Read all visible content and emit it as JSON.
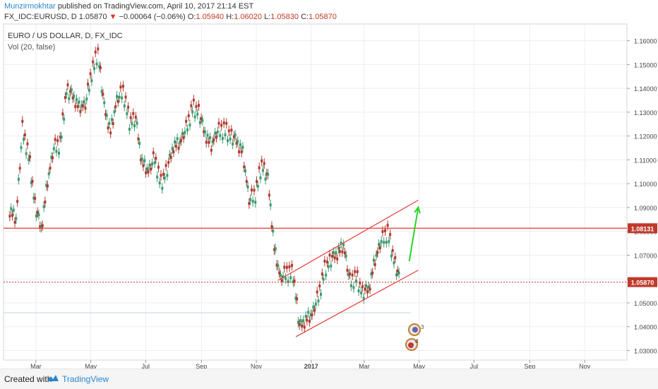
{
  "header": {
    "author": "Munzirmokhtar",
    "published": "published on TradingView.com, April 10, 2017 21:14 EST",
    "symbol": "FX_IDC:EURUSD, D",
    "last": "1.05870",
    "change": "−0.00064 (−0.06%)",
    "o_label": "O:",
    "o": "1.05940",
    "h_label": "H:",
    "h": "1.06020",
    "l_label": "L:",
    "l": "1.05830",
    "c_label": "C:",
    "c": "1.05870"
  },
  "legend": {
    "title": "EURO / US DOLLAR, D, FX_IDC",
    "indicator": "Vol (20, false)"
  },
  "footer": {
    "created": "Created with",
    "brand": "TradingView"
  },
  "events": {
    "badge1": "3",
    "badge2": "4"
  },
  "colors": {
    "up": "#3d9970",
    "down": "#b03a2e",
    "trend": "#e53935",
    "arrow": "#27d427",
    "level": "#e53935",
    "price_tag": "#c0392b",
    "lower_line": "#b9d4e6"
  },
  "chart_data": {
    "type": "candlestick",
    "title": "EURO / US DOLLAR, D, FX_IDC",
    "x_ticks": [
      "Mar",
      "May",
      "Jul",
      "Sep",
      "Nov",
      "2017",
      "Mar",
      "May",
      "Jul",
      "Sep",
      "Nov"
    ],
    "y_ticks": [
      "1.16000",
      "1.15000",
      "1.14000",
      "1.13000",
      "1.12000",
      "1.11000",
      "1.10000",
      "1.09000",
      "1.08000",
      "1.07000",
      "1.06000",
      "1.05000",
      "1.04000",
      "1.03000"
    ],
    "ylim": [
      1.026,
      1.167
    ],
    "grid": true,
    "price_levels": [
      {
        "value": 1.08131,
        "label": "1.08131",
        "style": "solid"
      },
      {
        "value": 1.0587,
        "label": "1.05870",
        "style": "dotted"
      }
    ],
    "channel": {
      "upper": [
        [
          "2016-11-25",
          1.0594
        ],
        [
          "2017-04-30",
          1.0931
        ]
      ],
      "lower": [
        [
          "2016-12-15",
          1.0358
        ],
        [
          "2017-04-30",
          1.0637
        ]
      ]
    },
    "arrow": {
      "from": [
        "2017-04-20",
        1.0675
      ],
      "to": [
        "2017-04-30",
        1.0901
      ]
    },
    "closes": [
      [
        "2016-02-01",
        1.089
      ],
      [
        "2016-02-08",
        1.085
      ],
      [
        "2016-02-15",
        1.123
      ],
      [
        "2016-02-22",
        1.112
      ],
      [
        "2016-02-29",
        1.091
      ],
      [
        "2016-03-07",
        1.081
      ],
      [
        "2016-03-14",
        1.101
      ],
      [
        "2016-03-21",
        1.115
      ],
      [
        "2016-03-28",
        1.117
      ],
      [
        "2016-04-04",
        1.139
      ],
      [
        "2016-04-11",
        1.137
      ],
      [
        "2016-04-18",
        1.132
      ],
      [
        "2016-04-25",
        1.133
      ],
      [
        "2016-05-02",
        1.147
      ],
      [
        "2016-05-09",
        1.155
      ],
      [
        "2016-05-16",
        1.132
      ],
      [
        "2016-05-23",
        1.122
      ],
      [
        "2016-05-30",
        1.135
      ],
      [
        "2016-06-06",
        1.139
      ],
      [
        "2016-06-13",
        1.126
      ],
      [
        "2016-06-20",
        1.127
      ],
      [
        "2016-06-27",
        1.109
      ],
      [
        "2016-07-04",
        1.105
      ],
      [
        "2016-07-11",
        1.111
      ],
      [
        "2016-07-18",
        1.1
      ],
      [
        "2016-07-25",
        1.106
      ],
      [
        "2016-08-01",
        1.116
      ],
      [
        "2016-08-08",
        1.117
      ],
      [
        "2016-08-15",
        1.123
      ],
      [
        "2016-08-22",
        1.132
      ],
      [
        "2016-08-29",
        1.13
      ],
      [
        "2016-09-05",
        1.121
      ],
      [
        "2016-09-12",
        1.116
      ],
      [
        "2016-09-19",
        1.122
      ],
      [
        "2016-09-26",
        1.123
      ],
      [
        "2016-10-03",
        1.12
      ],
      [
        "2016-10-10",
        1.118
      ],
      [
        "2016-10-17",
        1.113
      ],
      [
        "2016-10-24",
        1.093
      ],
      [
        "2016-10-31",
        1.096
      ],
      [
        "2016-11-07",
        1.108
      ],
      [
        "2016-11-14",
        1.102
      ],
      [
        "2016-11-21",
        1.073
      ],
      [
        "2016-11-28",
        1.06
      ],
      [
        "2016-12-05",
        1.063
      ],
      [
        "2016-12-12",
        1.062
      ],
      [
        "2016-12-19",
        1.04
      ],
      [
        "2016-12-26",
        1.043
      ],
      [
        "2017-01-02",
        1.045
      ],
      [
        "2017-01-09",
        1.053
      ],
      [
        "2017-01-16",
        1.064
      ],
      [
        "2017-01-23",
        1.068
      ],
      [
        "2017-01-30",
        1.071
      ],
      [
        "2017-02-06",
        1.074
      ],
      [
        "2017-02-13",
        1.059
      ],
      [
        "2017-02-20",
        1.061
      ],
      [
        "2017-02-27",
        1.054
      ],
      [
        "2017-03-06",
        1.056
      ],
      [
        "2017-03-13",
        1.068
      ],
      [
        "2017-03-20",
        1.076
      ],
      [
        "2017-03-27",
        1.08
      ],
      [
        "2017-04-03",
        1.068
      ],
      [
        "2017-04-10",
        1.0587
      ]
    ]
  }
}
